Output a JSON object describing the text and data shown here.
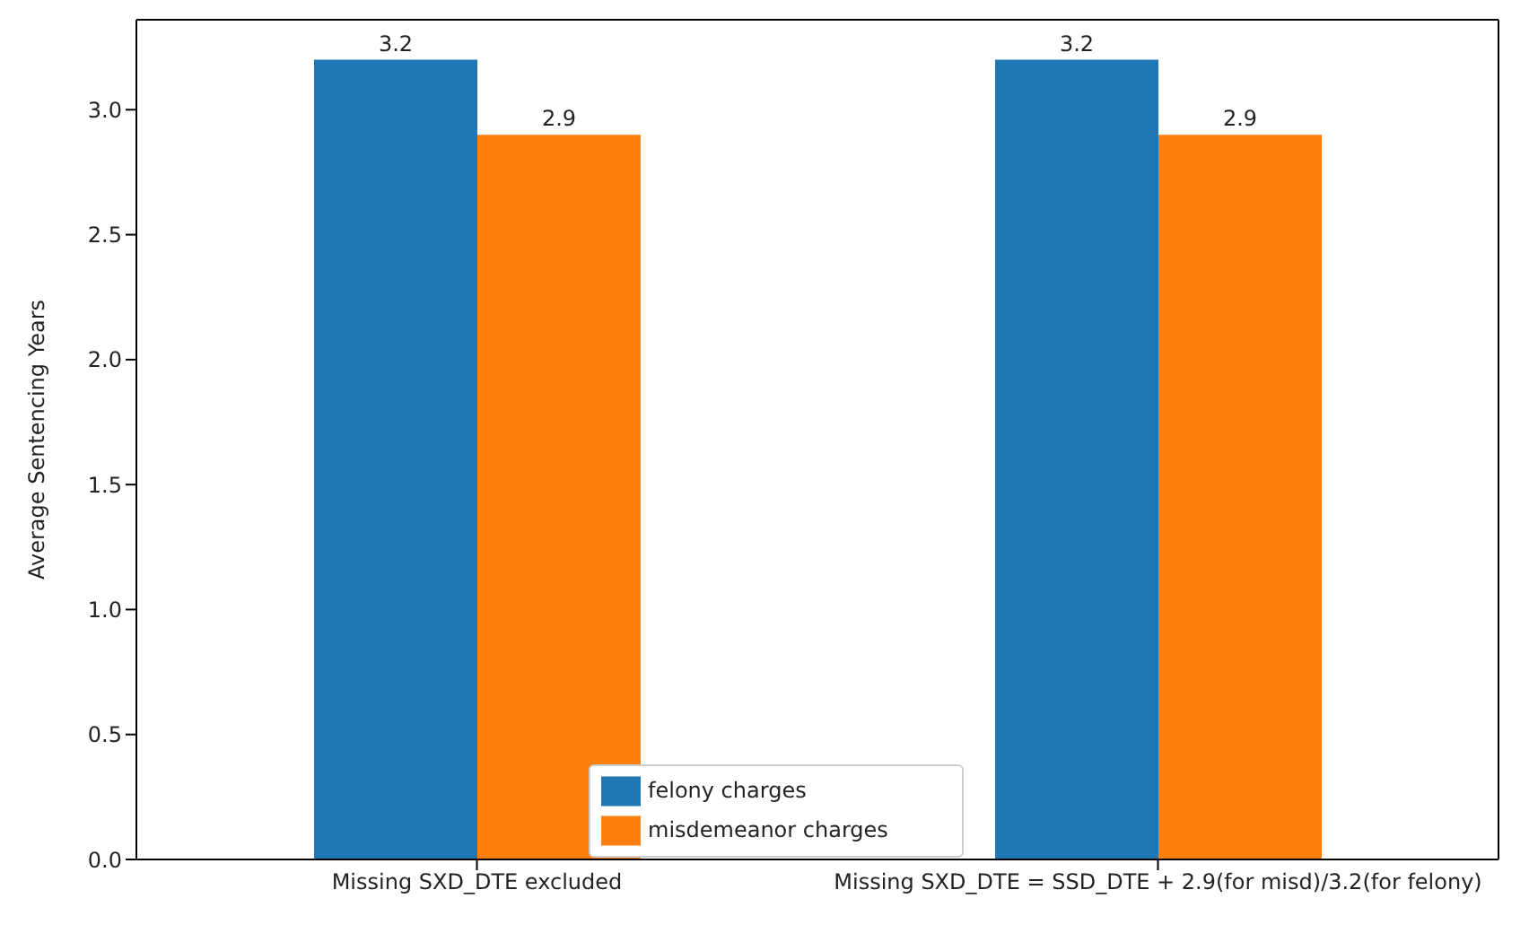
{
  "chart_data": {
    "type": "bar",
    "ylabel": "Average Sentencing Years",
    "categories": [
      "Missing SXD_DTE excluded",
      "Missing SXD_DTE = SSD_DTE + 2.9(for misd)/3.2(for felony)"
    ],
    "series": [
      {
        "name": "felony charges",
        "color": "#1f77b4",
        "values": [
          3.2,
          3.2
        ]
      },
      {
        "name": "misdemeanor charges",
        "color": "#ff7f0e",
        "values": [
          2.9,
          2.9
        ]
      }
    ],
    "ylim": [
      0,
      3.36
    ],
    "yticks": [
      {
        "value": 0,
        "label": "0.0"
      },
      0.5,
      {
        "value": 1,
        "label": "1.0"
      },
      1.5,
      {
        "value": 2,
        "label": "2.0"
      },
      2.5,
      {
        "value": 3,
        "label": "3.0"
      }
    ],
    "data_labels": true,
    "grid": false,
    "legend": "bottom"
  }
}
